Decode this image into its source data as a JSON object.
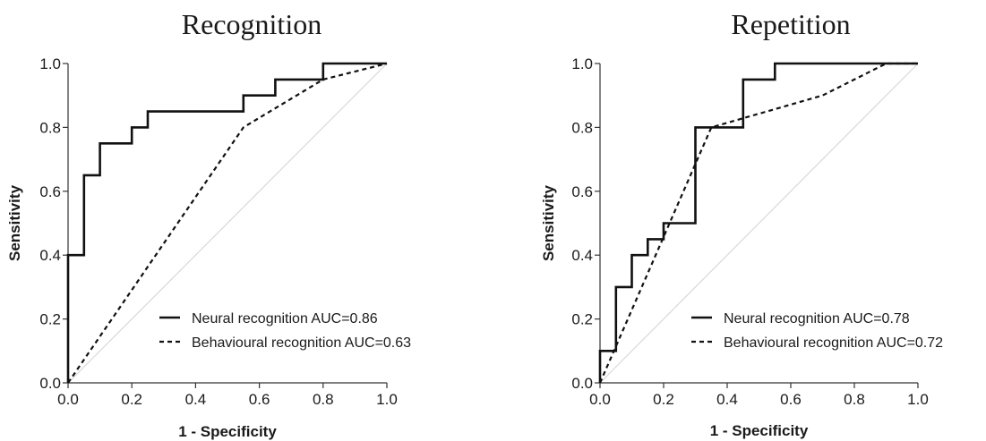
{
  "chart_data": [
    {
      "type": "line",
      "title": "Recognition",
      "xlabel": "1 - Specificity",
      "ylabel": "Sensitivity",
      "xlim": [
        0,
        1
      ],
      "ylim": [
        0,
        1
      ],
      "xticks": [
        "0.0",
        "0.2",
        "0.4",
        "0.6",
        "0.8",
        "1.0"
      ],
      "yticks": [
        "0.0",
        "0.2",
        "0.4",
        "0.6",
        "0.8",
        "1.0"
      ],
      "grid": false,
      "legend_position": "bottom-right",
      "reference_line": {
        "x": [
          0,
          1
        ],
        "y": [
          0,
          1
        ],
        "color": "#d9d9d9"
      },
      "series": [
        {
          "name": "Neural recognition AUC=0.86",
          "style": "solid",
          "color": "#111111",
          "x": [
            0,
            0,
            0.05,
            0.05,
            0.1,
            0.1,
            0.2,
            0.2,
            0.25,
            0.25,
            0.55,
            0.55,
            0.65,
            0.65,
            0.8,
            0.8,
            1.0
          ],
          "y": [
            0,
            0.4,
            0.4,
            0.65,
            0.65,
            0.75,
            0.75,
            0.8,
            0.8,
            0.85,
            0.85,
            0.9,
            0.9,
            0.95,
            0.95,
            1.0,
            1.0
          ]
        },
        {
          "name": "Behavioural recognition AUC=0.63",
          "style": "dashed",
          "color": "#111111",
          "x": [
            0,
            0.55,
            0.8,
            1.0
          ],
          "y": [
            0,
            0.8,
            0.95,
            1.0
          ]
        }
      ]
    },
    {
      "type": "line",
      "title": "Repetition",
      "xlabel": "1 - Specificity",
      "ylabel": "Sensitivity",
      "xlim": [
        0,
        1
      ],
      "ylim": [
        0,
        1
      ],
      "xticks": [
        "0.0",
        "0.2",
        "0.4",
        "0.6",
        "0.8",
        "1.0"
      ],
      "yticks": [
        "0.0",
        "0.2",
        "0.4",
        "0.6",
        "0.8",
        "1.0"
      ],
      "grid": false,
      "legend_position": "bottom-right",
      "reference_line": {
        "x": [
          0,
          1
        ],
        "y": [
          0,
          1
        ],
        "color": "#d9d9d9"
      },
      "series": [
        {
          "name": "Neural recognition AUC=0.78",
          "style": "solid",
          "color": "#111111",
          "x": [
            0,
            0,
            0.05,
            0.05,
            0.1,
            0.1,
            0.15,
            0.15,
            0.2,
            0.2,
            0.3,
            0.3,
            0.45,
            0.45,
            0.55,
            0.55,
            1.0
          ],
          "y": [
            0,
            0.1,
            0.1,
            0.3,
            0.3,
            0.4,
            0.4,
            0.45,
            0.45,
            0.5,
            0.5,
            0.8,
            0.8,
            0.95,
            0.95,
            1.0,
            1.0
          ]
        },
        {
          "name": "Behavioural recognition AUC=0.72",
          "style": "dashed",
          "color": "#111111",
          "x": [
            0,
            0.35,
            0.7,
            0.9,
            1.0
          ],
          "y": [
            0,
            0.8,
            0.9,
            1.0,
            1.0
          ]
        }
      ]
    }
  ]
}
